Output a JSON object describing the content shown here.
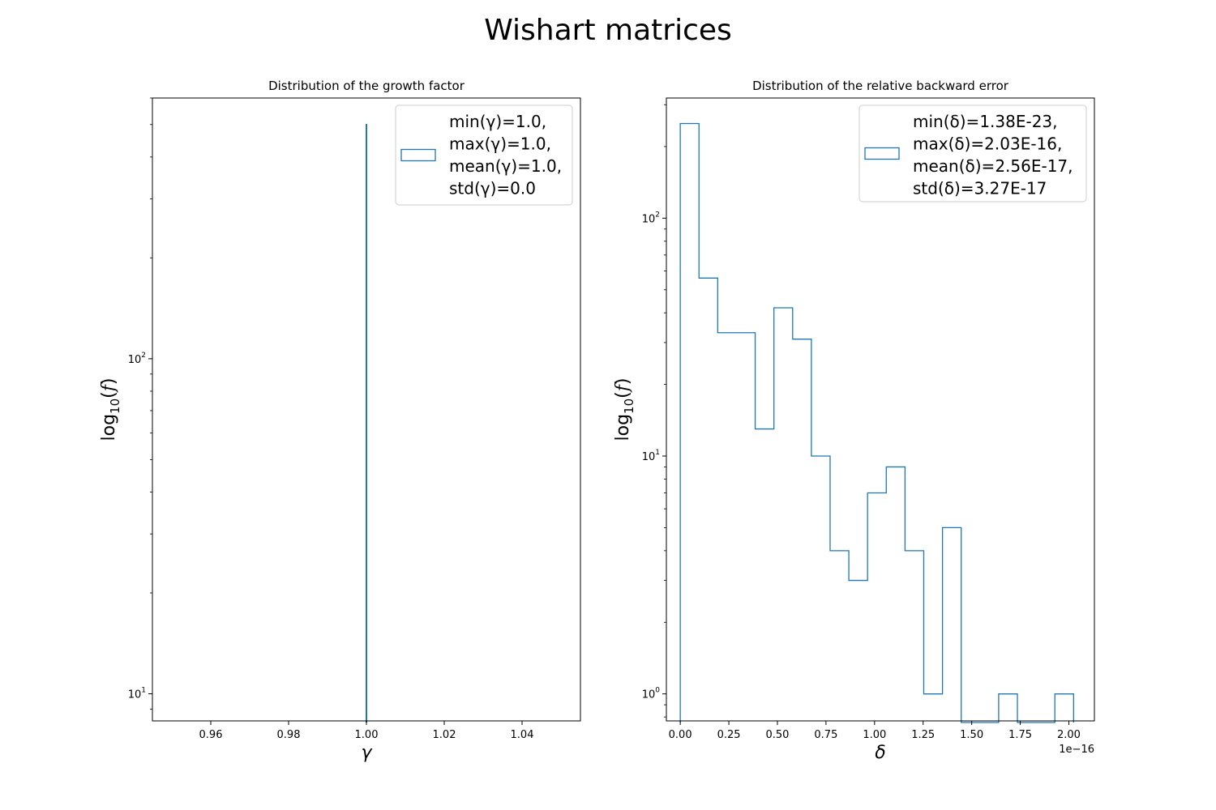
{
  "suptitle": "Wishart matrices",
  "chart_data": [
    {
      "type": "histogram",
      "scale_y": "log",
      "title": "Distribution of the growth factor",
      "xlabel": "γ",
      "ylabel": "log10(f)",
      "xlim": [
        0.945,
        1.055
      ],
      "ylim": [
        8.3,
        600
      ],
      "x_ticks": [
        0.96,
        0.98,
        1.0,
        1.02,
        1.04
      ],
      "x_tick_labels": [
        "0.96",
        "0.98",
        "1.00",
        "1.02",
        "1.04"
      ],
      "y_ticks": [
        10,
        100
      ],
      "bars": [
        {
          "x0": 0.99995,
          "x1": 1.00005,
          "count": 500
        },
        {
          "x0": 0.99995,
          "x1": 1.00005,
          "count": 16
        },
        {
          "x0": 0.99995,
          "x1": 1.00005,
          "count": 10
        }
      ],
      "legend": {
        "position": "upper right",
        "lines": [
          "min(γ)=1.0,",
          "max(γ)=1.0,",
          "mean(γ)=1.0,",
          "std(γ)=0.0"
        ]
      },
      "color": "#1f77b4"
    },
    {
      "type": "histogram",
      "scale_y": "log",
      "title": "Distribution of the relative backward error",
      "xlabel": "δ",
      "ylabel": "log10(f)",
      "x_offset_label": "1e−16",
      "xlim": [
        -0.0715,
        2.1315
      ],
      "ylim": [
        0.77,
        320
      ],
      "x_ticks": [
        0.0,
        0.25,
        0.5,
        0.75,
        1.0,
        1.25,
        1.5,
        1.75,
        2.0
      ],
      "x_tick_labels": [
        "0.00",
        "0.25",
        "0.50",
        "0.75",
        "1.00",
        "1.25",
        "1.50",
        "1.75",
        "2.00"
      ],
      "y_ticks": [
        1,
        10,
        100
      ],
      "bin_edges": [
        0.0,
        0.0964,
        0.1928,
        0.2892,
        0.3856,
        0.482,
        0.5784,
        0.6748,
        0.7712,
        0.8676,
        0.964,
        1.0604,
        1.1568,
        1.2532,
        1.3496,
        1.446,
        1.5424,
        1.6388,
        1.7352,
        1.8316,
        1.928,
        2.0244
      ],
      "counts": [
        250,
        56,
        33,
        33,
        13,
        42,
        31,
        10,
        4,
        3,
        7,
        9,
        4,
        1,
        5,
        0,
        0,
        1,
        0,
        0,
        1
      ],
      "legend": {
        "position": "upper right",
        "lines": [
          "min(δ)=1.38E-23,",
          "max(δ)=2.03E-16,",
          "mean(δ)=2.56E-17,",
          "std(δ)=3.27E-17"
        ]
      },
      "color": "#1f77b4"
    }
  ]
}
